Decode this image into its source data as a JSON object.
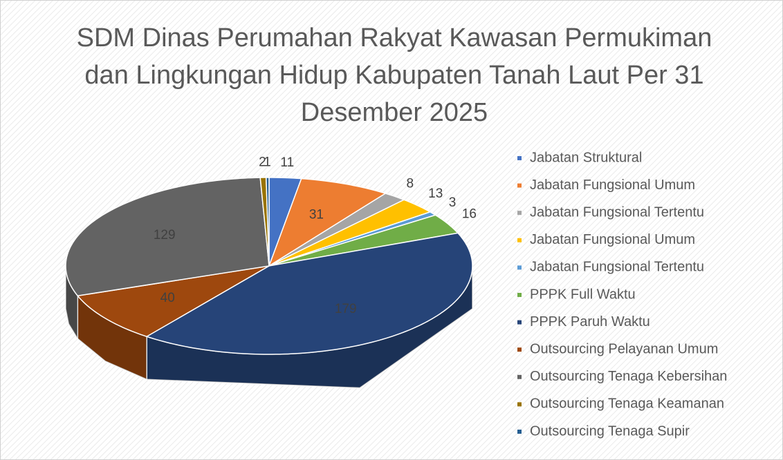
{
  "chart_data": {
    "type": "pie3d",
    "title": "SDM Dinas Perumahan Rakyat Kawasan Permukiman dan Lingkungan Hidup Kabupaten Tanah Laut Per 31 Desember 2025",
    "categories": [
      "Jabatan Struktural",
      "Jabatan Fungsional Umum",
      "Jabatan Fungsional Tertentu",
      "Jabatan Fungsional Umum",
      "Jabatan Fungsional Tertentu",
      "PPPK Full Waktu",
      "PPPK Paruh Waktu",
      "Outsourcing Pelayanan Umum",
      "Outsourcing Tenaga Kebersihan",
      "Outsourcing Tenaga Keamanan",
      "Outsourcing Tenaga Supir"
    ],
    "values": [
      11,
      31,
      8,
      13,
      3,
      16,
      179,
      40,
      129,
      2,
      1
    ],
    "colors": [
      "#4472c4",
      "#ed7d31",
      "#a5a5a5",
      "#ffc000",
      "#5b9bd5",
      "#70ad47",
      "#264478",
      "#9e480e",
      "#636363",
      "#997300",
      "#255e91"
    ],
    "legend": "right"
  }
}
